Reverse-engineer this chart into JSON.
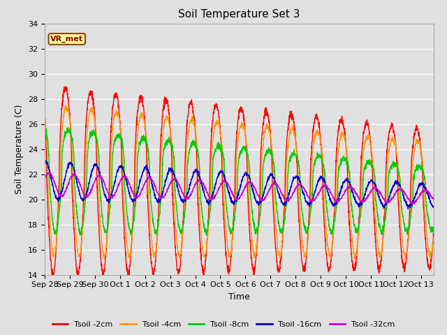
{
  "title": "Soil Temperature Set 3",
  "xlabel": "Time",
  "ylabel": "Soil Temperature (C)",
  "ylim": [
    14,
    34
  ],
  "yticks": [
    14,
    16,
    18,
    20,
    22,
    24,
    26,
    28,
    30,
    32,
    34
  ],
  "bg_color": "#e0e0e0",
  "annotation_text": "VR_met",
  "annotation_fg": "#8b0000",
  "annotation_bg": "#ffff99",
  "annotation_border": "#8b4513",
  "colors": {
    "2cm": "#ff0000",
    "4cm": "#ff9900",
    "8cm": "#00cc00",
    "16cm": "#0000cc",
    "32cm": "#cc00cc"
  },
  "labels": {
    "2cm": "Tsoil -2cm",
    "4cm": "Tsoil -4cm",
    "8cm": "Tsoil -8cm",
    "16cm": "Tsoil -16cm",
    "32cm": "Tsoil -32cm"
  },
  "x_tick_labels": [
    "Sep 28",
    "Sep 29",
    "Sep 30",
    "Oct 1",
    "Oct 2",
    "Oct 3",
    "Oct 4",
    "Oct 5",
    "Oct 6",
    "Oct 7",
    "Oct 8",
    "Oct 9",
    "Oct 10",
    "Oct 11",
    "Oct 12",
    "Oct 13"
  ],
  "x_tick_positions": [
    0,
    1,
    2,
    3,
    4,
    5,
    6,
    7,
    8,
    9,
    10,
    11,
    12,
    13,
    14,
    15
  ],
  "n_days": 15.5,
  "ppd": 144
}
